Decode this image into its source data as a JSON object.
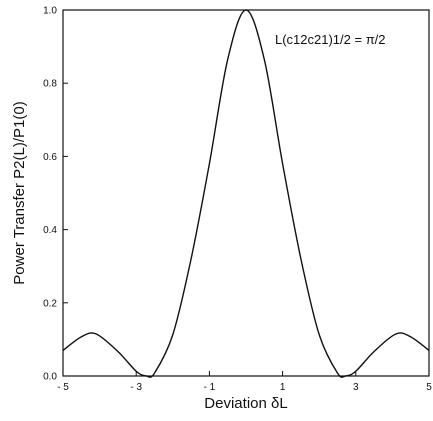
{
  "chart_data": {
    "type": "line",
    "title": "",
    "xlabel": "Deviation δL",
    "ylabel": "Power Transfer P2(L)/P1(0)",
    "annotation": "L(c12c21)1/2 = π/2",
    "xlim": [
      -5,
      5
    ],
    "ylim": [
      0,
      1
    ],
    "x_ticks": [
      -5,
      -3,
      -1,
      1,
      3,
      5
    ],
    "x_tick_labels": [
      "- 5",
      "- 3",
      "- 1",
      "1",
      "3",
      "5"
    ],
    "y_ticks": [
      0,
      0.2,
      0.4,
      0.6,
      0.8,
      1.0
    ],
    "y_tick_labels": [
      "0.0",
      "0.2",
      "0.4",
      "0.6",
      "0.8",
      "1.0"
    ],
    "grid": false,
    "series": [
      {
        "x": [
          -5.0,
          -4.5,
          -4.1,
          -3.5,
          -3.0,
          -2.72,
          -2.5,
          -2.0,
          -1.5,
          -1.0,
          -0.5,
          0.0,
          0.5,
          1.0,
          1.5,
          2.0,
          2.5,
          2.72,
          3.0,
          3.5,
          4.1,
          4.5,
          5.0
        ],
        "y": [
          0.07,
          0.107,
          0.115,
          0.067,
          0.013,
          0.0,
          0.008,
          0.113,
          0.32,
          0.58,
          0.865,
          1.0,
          0.865,
          0.58,
          0.32,
          0.113,
          0.008,
          0.0,
          0.013,
          0.067,
          0.115,
          0.107,
          0.07
        ]
      }
    ]
  }
}
